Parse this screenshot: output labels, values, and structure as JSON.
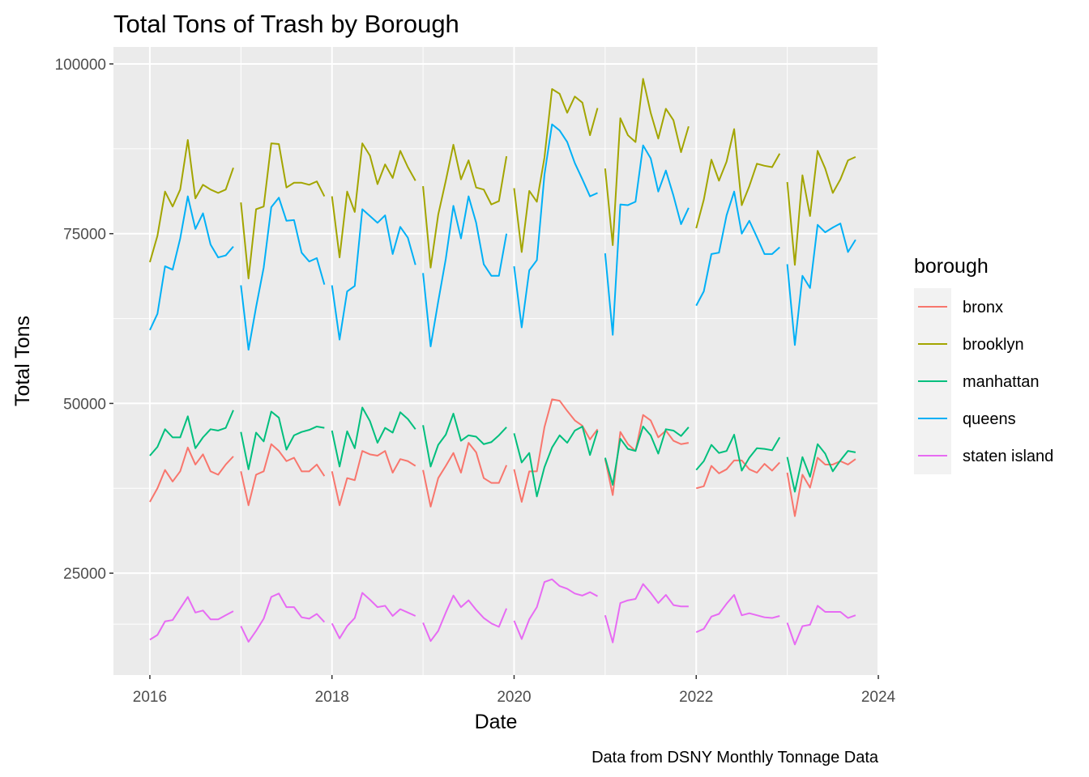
{
  "chart_data": {
    "type": "line",
    "title": "Total Tons of Trash by Borough",
    "xlabel": "Date",
    "ylabel": "Total Tons",
    "caption": "Data from DSNY Monthly Tonnage Data",
    "legend_title": "borough",
    "legend_position": "right",
    "grid": true,
    "xlim": [
      2015.6,
      2024.0
    ],
    "ylim": [
      10000,
      102500
    ],
    "x_ticks": [
      2016,
      2018,
      2020,
      2022,
      2024
    ],
    "x_tick_labels": [
      "2016",
      "2018",
      "2020",
      "2022",
      "2024"
    ],
    "y_ticks": [
      25000,
      50000,
      75000,
      100000
    ],
    "y_tick_labels": [
      "25000",
      "50000",
      "75000",
      "100000"
    ],
    "note": "x values are fractional years; each series is drawn as separate per-year segments (Jan–Dec), no line connecting Dec to next Jan.",
    "series": [
      {
        "name": "bronx",
        "color": "#F8766D",
        "segments": [
          {
            "year": 2016,
            "values": [
              35500,
              37500,
              40200,
              38500,
              40000,
              43500,
              41000,
              42500,
              40000,
              39500,
              41000,
              42200
            ]
          },
          {
            "year": 2017,
            "values": [
              40000,
              35000,
              39500,
              40000,
              44000,
              43000,
              41500,
              42000,
              40000,
              40000,
              41000,
              39300
            ]
          },
          {
            "year": 2018,
            "values": [
              40000,
              35000,
              39000,
              38700,
              43000,
              42500,
              42300,
              43000,
              39800,
              41800,
              41500,
              40800
            ]
          },
          {
            "year": 2019,
            "values": [
              40200,
              34800,
              39000,
              40800,
              42700,
              39800,
              44200,
              42800,
              39000,
              38300,
              38300,
              40900
            ]
          },
          {
            "year": 2020,
            "values": [
              40300,
              35500,
              40000,
              40000,
              46500,
              50600,
              50400,
              48900,
              47500,
              46700,
              44700,
              46200
            ]
          },
          {
            "year": 2021,
            "values": [
              41800,
              36500,
              45800,
              44000,
              43000,
              48300,
              47500,
              45000,
              46000,
              44500,
              44000,
              44200
            ]
          },
          {
            "year": 2022,
            "values": [
              37500,
              37800,
              40800,
              39700,
              40300,
              41600,
              41600,
              40300,
              39800,
              41100,
              40100,
              41300
            ]
          },
          {
            "year": 2023,
            "values": [
              39800,
              33400,
              39500,
              37600,
              42000,
              41000,
              41000,
              41500,
              41000,
              41800
            ]
          }
        ]
      },
      {
        "name": "brooklyn",
        "color": "#A3A500",
        "segments": [
          {
            "year": 2016,
            "values": [
              70800,
              74700,
              81200,
              79000,
              81500,
              88800,
              80200,
              82200,
              81500,
              81000,
              81500,
              84700
            ]
          },
          {
            "year": 2017,
            "values": [
              79600,
              68400,
              78600,
              79000,
              88300,
              88200,
              81800,
              82500,
              82500,
              82200,
              82700,
              80500
            ]
          },
          {
            "year": 2018,
            "values": [
              80500,
              71500,
              81200,
              78200,
              88300,
              86500,
              82300,
              85200,
              83200,
              87200,
              84800,
              82800
            ]
          },
          {
            "year": 2019,
            "values": [
              82000,
              70000,
              77800,
              82800,
              88100,
              83000,
              85800,
              81800,
              81500,
              79300,
              79800,
              86400
            ]
          },
          {
            "year": 2020,
            "values": [
              81700,
              72300,
              81300,
              79700,
              86200,
              96300,
              95600,
              92800,
              95200,
              94300,
              89500,
              93500
            ]
          },
          {
            "year": 2021,
            "values": [
              84600,
              73300,
              92000,
              89500,
              88500,
              97800,
              92800,
              89000,
              93400,
              91700,
              87000,
              90800
            ]
          },
          {
            "year": 2022,
            "values": [
              75800,
              80000,
              85900,
              82800,
              85600,
              90400,
              79200,
              82000,
              85300,
              85000,
              84800,
              86800
            ]
          },
          {
            "year": 2023,
            "values": [
              82600,
              70400,
              83600,
              77600,
              87200,
              84600,
              81000,
              83000,
              85800,
              86300
            ]
          }
        ]
      },
      {
        "name": "manhattan",
        "color": "#00BF7D",
        "segments": [
          {
            "year": 2016,
            "values": [
              42300,
              43600,
              46200,
              45000,
              45000,
              48100,
              43400,
              45000,
              46200,
              46000,
              46400,
              49000
            ]
          },
          {
            "year": 2017,
            "values": [
              45800,
              40300,
              45700,
              44400,
              48800,
              47900,
              43200,
              45300,
              45800,
              46100,
              46600,
              46400
            ]
          },
          {
            "year": 2018,
            "values": [
              46000,
              40700,
              45900,
              43400,
              49400,
              47400,
              44200,
              46400,
              45700,
              48700,
              47700,
              46200
            ]
          },
          {
            "year": 2019,
            "values": [
              46800,
              40700,
              43900,
              45400,
              48500,
              44500,
              45300,
              45100,
              44000,
              44300,
              45300,
              46500
            ]
          },
          {
            "year": 2020,
            "values": [
              45600,
              41300,
              42700,
              36300,
              40600,
              43500,
              45300,
              44200,
              46000,
              46600,
              42400,
              46000
            ]
          },
          {
            "year": 2021,
            "values": [
              42000,
              38000,
              44800,
              43300,
              43000,
              46600,
              45300,
              42600,
              46200,
              46000,
              45200,
              46500
            ]
          },
          {
            "year": 2022,
            "values": [
              40200,
              41500,
              43900,
              42700,
              43000,
              45400,
              40100,
              42000,
              43400,
              43300,
              43100,
              45000
            ]
          },
          {
            "year": 2023,
            "values": [
              42100,
              37000,
              42100,
              39200,
              44000,
              42600,
              40000,
              41600,
              43000,
              42800
            ]
          }
        ]
      },
      {
        "name": "queens",
        "color": "#00B0F6",
        "segments": [
          {
            "year": 2016,
            "values": [
              60800,
              63200,
              70200,
              69700,
              74300,
              80500,
              75700,
              78000,
              73400,
              71500,
              71800,
              73100
            ]
          },
          {
            "year": 2017,
            "values": [
              67400,
              57900,
              64200,
              70000,
              78900,
              80300,
              76900,
              77000,
              72200,
              70900,
              71400,
              67500
            ]
          },
          {
            "year": 2018,
            "values": [
              67400,
              59400,
              66500,
              67300,
              78600,
              77600,
              76600,
              77700,
              72000,
              76000,
              74400,
              70400
            ]
          },
          {
            "year": 2019,
            "values": [
              69200,
              58400,
              65000,
              71300,
              79100,
              74300,
              80500,
              76600,
              70500,
              68800,
              68800,
              75000
            ]
          },
          {
            "year": 2020,
            "values": [
              70200,
              61200,
              69600,
              71100,
              83700,
              91100,
              90200,
              88500,
              85400,
              83000,
              80500,
              81000
            ]
          },
          {
            "year": 2021,
            "values": [
              72100,
              60100,
              79300,
              79200,
              79700,
              88000,
              86100,
              81200,
              84300,
              80600,
              76400,
              78800
            ]
          },
          {
            "year": 2022,
            "values": [
              64400,
              66500,
              72000,
              72200,
              77700,
              81200,
              75000,
              76900,
              74500,
              72000,
              72000,
              73000
            ]
          },
          {
            "year": 2023,
            "values": [
              70500,
              58600,
              68800,
              67000,
              76300,
              75200,
              75900,
              76500,
              72300,
              74100
            ]
          }
        ]
      },
      {
        "name": "staten island",
        "color": "#E76BF3",
        "segments": [
          {
            "year": 2016,
            "values": [
              15200,
              15900,
              17900,
              18100,
              19800,
              21500,
              19200,
              19500,
              18200,
              18200,
              18800,
              19400
            ]
          },
          {
            "year": 2017,
            "values": [
              17200,
              14900,
              16500,
              18300,
              21500,
              22000,
              20000,
              20000,
              18500,
              18300,
              19000,
              17800
            ]
          },
          {
            "year": 2018,
            "values": [
              17600,
              15400,
              17200,
              18400,
              22100,
              21100,
              20000,
              20200,
              18700,
              19700,
              19200,
              18700
            ]
          },
          {
            "year": 2019,
            "values": [
              17700,
              15000,
              16500,
              19200,
              21700,
              20000,
              21000,
              19600,
              18400,
              17600,
              17100,
              19800
            ]
          },
          {
            "year": 2020,
            "values": [
              18000,
              15300,
              18200,
              20000,
              23700,
              24100,
              23100,
              22700,
              22000,
              21700,
              22200,
              21600
            ]
          },
          {
            "year": 2021,
            "values": [
              18800,
              14800,
              20600,
              21000,
              21200,
              23400,
              22100,
              20600,
              21800,
              20300,
              20100,
              20100
            ]
          },
          {
            "year": 2022,
            "values": [
              16300,
              16800,
              18600,
              19000,
              20500,
              21800,
              18800,
              19100,
              18800,
              18500,
              18400,
              18700
            ]
          },
          {
            "year": 2023,
            "values": [
              17700,
              14500,
              17200,
              17400,
              20200,
              19300,
              19300,
              19300,
              18400,
              18800
            ]
          }
        ]
      }
    ]
  }
}
